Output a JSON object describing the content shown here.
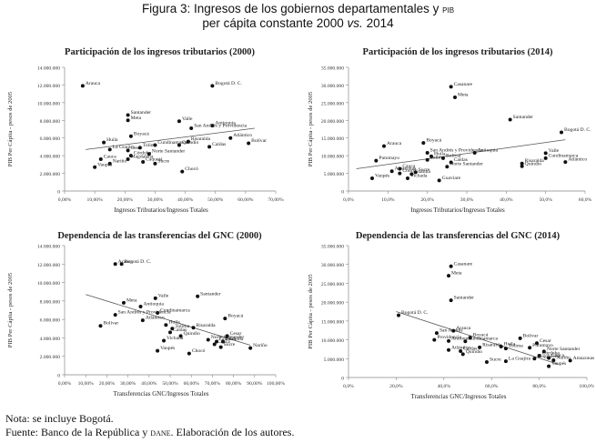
{
  "figure": {
    "title_line1": "Figura 3: Ingresos de los gobiernos departamentales y",
    "title_pib": "pib",
    "title_line2_a": "per cápita constante 2000",
    "title_line2_vs": "vs.",
    "title_line2_b": "2014"
  },
  "notes": {
    "note": "Nota: se incluye Bogotá.",
    "source_a": "Fuente: Banco de la República y",
    "source_dane": "dane",
    "source_b": ". Elaboración de los autores."
  },
  "chart_data": [
    {
      "type": "scatter",
      "title": "Participación de los ingresos tributarios (2000)",
      "xlabel": "Ingresos Tributarios/Ingresos Totales",
      "ylabel": "PIB Per Cápita - pesos de 2005",
      "xlim": [
        0,
        0.7
      ],
      "ylim": [
        0,
        14000000
      ],
      "xticks": [
        "0,00%",
        "10,00%",
        "20,00%",
        "30,00%",
        "40,00%",
        "50,00%",
        "60,00%",
        "70,00%"
      ],
      "yticks": [
        "0",
        "2.000.000",
        "4.000.000",
        "6.000.000",
        "8.000.000",
        "10.000.000",
        "12.000.000",
        "14.000.000"
      ],
      "trendline": [
        [
          0.07,
          4700000
        ],
        [
          0.63,
          7100000
        ]
      ],
      "points": [
        {
          "label": "Arauca",
          "x": 0.06,
          "y": 11900000
        },
        {
          "label": "Bogotá D. C.",
          "x": 0.49,
          "y": 11900000
        },
        {
          "label": "Santander",
          "x": 0.21,
          "y": 8600000
        },
        {
          "label": "Meta",
          "x": 0.21,
          "y": 8000000
        },
        {
          "label": "Valle",
          "x": 0.38,
          "y": 7900000
        },
        {
          "label": "Antioquia",
          "x": 0.49,
          "y": 7400000
        },
        {
          "label": "San Andrés y Providencia",
          "x": 0.42,
          "y": 7100000
        },
        {
          "label": "Atlántico",
          "x": 0.55,
          "y": 6000000
        },
        {
          "label": "Boyacá",
          "x": 0.22,
          "y": 6200000
        },
        {
          "label": "Bolívar",
          "x": 0.61,
          "y": 5400000
        },
        {
          "label": "Huila",
          "x": 0.13,
          "y": 5500000
        },
        {
          "label": "Risaralda",
          "x": 0.41,
          "y": 5600000
        },
        {
          "label": "Quindío",
          "x": 0.38,
          "y": 5200000
        },
        {
          "label": "Caldas",
          "x": 0.48,
          "y": 5000000
        },
        {
          "label": "Cundinamarca",
          "x": 0.3,
          "y": 5200000
        },
        {
          "label": "Cesar",
          "x": 0.21,
          "y": 4600000
        },
        {
          "label": "Tolima",
          "x": 0.25,
          "y": 4900000
        },
        {
          "label": "La Guajira",
          "x": 0.15,
          "y": 4700000
        },
        {
          "label": "Norte Santander",
          "x": 0.28,
          "y": 4200000
        },
        {
          "label": "Córdoba",
          "x": 0.22,
          "y": 4000000
        },
        {
          "label": "Magdalena",
          "x": 0.21,
          "y": 3600000
        },
        {
          "label": "Cauca",
          "x": 0.12,
          "y": 3600000
        },
        {
          "label": "Caquetá",
          "x": 0.26,
          "y": 3300000
        },
        {
          "label": "Nariño",
          "x": 0.15,
          "y": 3100000
        },
        {
          "label": "Sucre",
          "x": 0.3,
          "y": 3100000
        },
        {
          "label": "Vaupés",
          "x": 0.1,
          "y": 2700000
        },
        {
          "label": "Chocó",
          "x": 0.39,
          "y": 2200000
        }
      ]
    },
    {
      "type": "scatter",
      "title": "Participación de los ingresos tributarios (2014)",
      "xlabel": "Ingresos Tributarios/Ingresos Totales",
      "ylabel": "PIB Per Cápita - pesos de 2005",
      "xlim": [
        0,
        0.6
      ],
      "ylim": [
        0,
        35000000
      ],
      "xticks": [
        "0,0%",
        "10,0%",
        "20,0%",
        "30,0%",
        "40,0%",
        "50,0%",
        "60,0%"
      ],
      "yticks": [
        "0",
        "5.000.000",
        "10.000.000",
        "15.000.000",
        "20.000.000",
        "25.000.000",
        "30.000.000",
        "35.000.000"
      ],
      "trendline": [
        [
          0.02,
          6300000
        ],
        [
          0.55,
          14500000
        ]
      ],
      "points": [
        {
          "label": "Casanare",
          "x": 0.26,
          "y": 29500000
        },
        {
          "label": "Meta",
          "x": 0.27,
          "y": 26500000
        },
        {
          "label": "Santander",
          "x": 0.41,
          "y": 20200000
        },
        {
          "label": "Bogotá D. C.",
          "x": 0.54,
          "y": 16600000
        },
        {
          "label": "Boyacá",
          "x": 0.19,
          "y": 13600000
        },
        {
          "label": "Arauca",
          "x": 0.09,
          "y": 12700000
        },
        {
          "label": "San Andrés y Providencia",
          "x": 0.2,
          "y": 10800000
        },
        {
          "label": "Antioquia",
          "x": 0.32,
          "y": 10800000
        },
        {
          "label": "Valle",
          "x": 0.5,
          "y": 10700000
        },
        {
          "label": "Cundinamarca",
          "x": 0.5,
          "y": 9300000
        },
        {
          "label": "Atlántico",
          "x": 0.55,
          "y": 8200000
        },
        {
          "label": "Risaralda",
          "x": 0.44,
          "y": 7800000
        },
        {
          "label": "Quindío",
          "x": 0.44,
          "y": 7000000
        },
        {
          "label": "Huila",
          "x": 0.21,
          "y": 9800000
        },
        {
          "label": "Tolima",
          "x": 0.2,
          "y": 8800000
        },
        {
          "label": "Bolívar",
          "x": 0.24,
          "y": 9300000
        },
        {
          "label": "Caldas",
          "x": 0.26,
          "y": 8100000
        },
        {
          "label": "Putumayo",
          "x": 0.07,
          "y": 8600000
        },
        {
          "label": "Norte Santander",
          "x": 0.25,
          "y": 6900000
        },
        {
          "label": "Cauca",
          "x": 0.13,
          "y": 6300000
        },
        {
          "label": "Amazonas",
          "x": 0.11,
          "y": 5600000
        },
        {
          "label": "Chocó",
          "x": 0.13,
          "y": 5000000
        },
        {
          "label": "Sucre",
          "x": 0.17,
          "y": 5300000
        },
        {
          "label": "Vaupés",
          "x": 0.06,
          "y": 3600000
        },
        {
          "label": "Vichada",
          "x": 0.15,
          "y": 3600000
        },
        {
          "label": "Guainía",
          "x": 0.16,
          "y": 4800000
        },
        {
          "label": "Guaviare",
          "x": 0.23,
          "y": 3000000
        }
      ]
    },
    {
      "type": "scatter",
      "title": "Dependencia de las transferencias del GNC (2000)",
      "xlabel": "Transferencias GNC/Ingresos Totales",
      "ylabel": "PIB Per Cápita - pesos de 2005",
      "xlim": [
        0,
        1.0
      ],
      "ylim": [
        0,
        14000000
      ],
      "xticks": [
        "0,00%",
        "10,00%",
        "20,00%",
        "30,00%",
        "40,00%",
        "50,00%",
        "60,00%",
        "70,00%",
        "80,00%",
        "90,00%",
        "100,00%"
      ],
      "yticks": [
        "0",
        "2.000.000",
        "4.000.000",
        "6.000.000",
        "8.000.000",
        "10.000.000",
        "12.000.000",
        "14.000.000"
      ],
      "trendline": [
        [
          0.1,
          8700000
        ],
        [
          0.88,
          3200000
        ]
      ],
      "points": [
        {
          "label": "Arauca",
          "x": 0.24,
          "y": 12000000
        },
        {
          "label": "Bogotá D. C.",
          "x": 0.27,
          "y": 12000000
        },
        {
          "label": "Valle",
          "x": 0.43,
          "y": 8300000
        },
        {
          "label": "Santander",
          "x": 0.63,
          "y": 8500000
        },
        {
          "label": "Meta",
          "x": 0.28,
          "y": 7800000
        },
        {
          "label": "Antioquia",
          "x": 0.36,
          "y": 7400000
        },
        {
          "label": "Cundinamarca",
          "x": 0.44,
          "y": 6700000
        },
        {
          "label": "San Andrés y Providencia",
          "x": 0.24,
          "y": 6500000
        },
        {
          "label": "Atlántico",
          "x": 0.37,
          "y": 5900000
        },
        {
          "label": "Boyacá",
          "x": 0.76,
          "y": 6100000
        },
        {
          "label": "Bolívar",
          "x": 0.17,
          "y": 5300000
        },
        {
          "label": "Huila",
          "x": 0.48,
          "y": 5400000
        },
        {
          "label": "Risaralda",
          "x": 0.61,
          "y": 5100000
        },
        {
          "label": "Tolima",
          "x": 0.51,
          "y": 5000000
        },
        {
          "label": "Caldas",
          "x": 0.5,
          "y": 4600000
        },
        {
          "label": "Quindío",
          "x": 0.55,
          "y": 4200000
        },
        {
          "label": "Cesar",
          "x": 0.77,
          "y": 4200000
        },
        {
          "label": "Norte Santander",
          "x": 0.68,
          "y": 3800000
        },
        {
          "label": "Córdoba",
          "x": 0.75,
          "y": 3600000
        },
        {
          "label": "Cauca",
          "x": 0.71,
          "y": 3300000
        },
        {
          "label": "Guainía",
          "x": 0.72,
          "y": 3600000
        },
        {
          "label": "Sucre",
          "x": 0.74,
          "y": 3000000
        },
        {
          "label": "Nariño",
          "x": 0.88,
          "y": 2900000
        },
        {
          "label": "Vichada",
          "x": 0.47,
          "y": 3700000
        },
        {
          "label": "Vaupés",
          "x": 0.44,
          "y": 2600000
        },
        {
          "label": "Chocó",
          "x": 0.59,
          "y": 2300000
        }
      ]
    },
    {
      "type": "scatter",
      "title": "Dependencia de las transferencias del GNC (2014)",
      "xlabel": "Transferencias GNC/Ingresos Totales",
      "ylabel": "PIB Per Cápita - pesos de 2005",
      "xlim": [
        0,
        1.0
      ],
      "ylim": [
        0,
        35000000
      ],
      "xticks": [
        "0,0%",
        "20,0%",
        "40,0%",
        "60,0%",
        "80,0%",
        "100,0%"
      ],
      "yticks": [
        "0",
        "5.000.000",
        "10.000.000",
        "15.000.000",
        "20.000.000",
        "25.000.000",
        "30.000.000",
        "35.000.000"
      ],
      "trendline": [
        [
          0.2,
          17500000
        ],
        [
          0.88,
          3500000
        ]
      ],
      "points": [
        {
          "label": "Casanare",
          "x": 0.43,
          "y": 29500000
        },
        {
          "label": "Meta",
          "x": 0.42,
          "y": 27000000
        },
        {
          "label": "Santander",
          "x": 0.43,
          "y": 20500000
        },
        {
          "label": "Bogotá D. C.",
          "x": 0.21,
          "y": 16500000
        },
        {
          "label": "San Andrés",
          "x": 0.37,
          "y": 11800000
        },
        {
          "label": "Arauca",
          "x": 0.44,
          "y": 12400000
        },
        {
          "label": "Boyacá",
          "x": 0.51,
          "y": 10600000
        },
        {
          "label": "Bolívar",
          "x": 0.72,
          "y": 10400000
        },
        {
          "label": "Providencia",
          "x": 0.36,
          "y": 10000000
        },
        {
          "label": "Cundinamarca",
          "x": 0.49,
          "y": 9600000
        },
        {
          "label": "Antioquia",
          "x": 0.42,
          "y": 9700000
        },
        {
          "label": "Cesar",
          "x": 0.79,
          "y": 9100000
        },
        {
          "label": "Putumayo",
          "x": 0.76,
          "y": 7900000
        },
        {
          "label": "Risaralda",
          "x": 0.55,
          "y": 8000000
        },
        {
          "label": "Huila",
          "x": 0.64,
          "y": 8200000
        },
        {
          "label": "Tolima",
          "x": 0.66,
          "y": 7700000
        },
        {
          "label": "Norte Santander",
          "x": 0.82,
          "y": 6900000
        },
        {
          "label": "Atlántico",
          "x": 0.42,
          "y": 7300000
        },
        {
          "label": "Caldas",
          "x": 0.47,
          "y": 7000000
        },
        {
          "label": "Quindío",
          "x": 0.48,
          "y": 6200000
        },
        {
          "label": "Córdoba",
          "x": 0.8,
          "y": 5800000
        },
        {
          "label": "Cauca",
          "x": 0.84,
          "y": 5200000
        },
        {
          "label": "Magdalena",
          "x": 0.78,
          "y": 5000000
        },
        {
          "label": "Nariño",
          "x": 0.86,
          "y": 4600000
        },
        {
          "label": "Amazonas",
          "x": 0.93,
          "y": 4500000
        },
        {
          "label": "Sucre",
          "x": 0.58,
          "y": 4100000
        },
        {
          "label": "La Guajira",
          "x": 0.66,
          "y": 4300000
        },
        {
          "label": "Vaupés",
          "x": 0.84,
          "y": 3000000
        }
      ]
    }
  ]
}
